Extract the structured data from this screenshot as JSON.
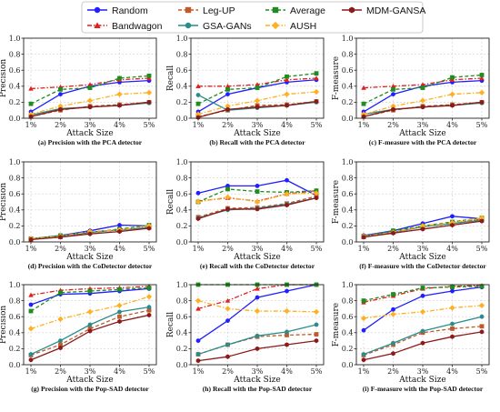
{
  "chart_data": {
    "type": "line",
    "legend": {
      "placement": "top",
      "entries": [
        "Random",
        "Bandwagon",
        "Leg-UP",
        "GSA-GANs",
        "Average",
        "AUSH",
        "MDM-GANSA"
      ]
    },
    "series_styles": [
      {
        "name": "Random",
        "color": "#1f1fff",
        "marker": "circle",
        "dash": "solid"
      },
      {
        "name": "Bandwagon",
        "color": "#e02020",
        "marker": "triangle",
        "dash": "dashdot"
      },
      {
        "name": "Leg-UP",
        "color": "#c05a2a",
        "marker": "square",
        "dash": "dashed"
      },
      {
        "name": "GSA-GANs",
        "color": "#2a8c8c",
        "marker": "circle",
        "dash": "solid"
      },
      {
        "name": "Average",
        "color": "#1e8c1e",
        "marker": "square",
        "dash": "dashed"
      },
      {
        "name": "AUSH",
        "color": "#ffb020",
        "marker": "diamond",
        "dash": "dashdot"
      },
      {
        "name": "MDM-GANSA",
        "color": "#8b1a1a",
        "marker": "hexagon",
        "dash": "solid"
      }
    ],
    "x": [
      "1%",
      "2%",
      "3%",
      "4%",
      "5%"
    ],
    "xlabel": "Attack Size",
    "ylim": [
      0.0,
      1.0
    ],
    "yticks": [
      "0.0",
      "0.2",
      "0.4",
      "0.6",
      "0.8",
      "1.0"
    ],
    "grid": true,
    "panels": [
      {
        "caption": "(a) Precision with the PCA detector",
        "ylabel": "Precision",
        "values": [
          [
            0.08,
            0.3,
            0.4,
            0.45,
            0.47
          ],
          [
            0.37,
            0.39,
            0.42,
            0.48,
            0.5
          ],
          [
            0.02,
            0.1,
            0.15,
            0.17,
            0.2
          ],
          [
            0.04,
            0.12,
            0.14,
            0.16,
            0.19
          ],
          [
            0.18,
            0.36,
            0.38,
            0.5,
            0.53
          ],
          [
            0.05,
            0.15,
            0.22,
            0.3,
            0.32
          ],
          [
            0.02,
            0.11,
            0.14,
            0.16,
            0.2
          ]
        ]
      },
      {
        "caption": "(b) Recall with the PCA detector",
        "ylabel": "Recall",
        "values": [
          [
            0.08,
            0.3,
            0.38,
            0.45,
            0.48
          ],
          [
            0.4,
            0.4,
            0.42,
            0.48,
            0.5
          ],
          [
            0.02,
            0.1,
            0.16,
            0.17,
            0.21
          ],
          [
            0.29,
            0.1,
            0.13,
            0.16,
            0.2
          ],
          [
            0.18,
            0.36,
            0.38,
            0.52,
            0.56
          ],
          [
            0.05,
            0.15,
            0.22,
            0.3,
            0.33
          ],
          [
            0.01,
            0.11,
            0.14,
            0.16,
            0.21
          ]
        ]
      },
      {
        "caption": "(c) F-measure with the PCA detector",
        "ylabel": "F-measure",
        "values": [
          [
            0.08,
            0.3,
            0.4,
            0.45,
            0.47
          ],
          [
            0.38,
            0.4,
            0.42,
            0.48,
            0.5
          ],
          [
            0.02,
            0.1,
            0.15,
            0.17,
            0.2
          ],
          [
            0.05,
            0.11,
            0.14,
            0.16,
            0.19
          ],
          [
            0.18,
            0.36,
            0.38,
            0.51,
            0.54
          ],
          [
            0.05,
            0.15,
            0.22,
            0.3,
            0.32
          ],
          [
            0.02,
            0.11,
            0.14,
            0.16,
            0.2
          ]
        ]
      },
      {
        "caption": "(d) Precision with the CoDetector detector",
        "ylabel": "Precision",
        "values": [
          [
            0.04,
            0.08,
            0.14,
            0.21,
            0.2
          ],
          [
            0.03,
            0.06,
            0.12,
            0.15,
            0.19
          ],
          [
            0.04,
            0.07,
            0.12,
            0.15,
            0.18
          ],
          [
            0.04,
            0.07,
            0.12,
            0.15,
            0.18
          ],
          [
            0.04,
            0.08,
            0.12,
            0.16,
            0.21
          ],
          [
            0.04,
            0.07,
            0.13,
            0.15,
            0.2
          ],
          [
            0.03,
            0.06,
            0.1,
            0.13,
            0.17
          ]
        ]
      },
      {
        "caption": "(e) Recall with the CoDetector detector",
        "ylabel": "Recall",
        "values": [
          [
            0.61,
            0.7,
            0.7,
            0.77,
            0.58
          ],
          [
            0.51,
            0.55,
            0.51,
            0.6,
            0.64
          ],
          [
            0.31,
            0.42,
            0.43,
            0.48,
            0.57
          ],
          [
            0.3,
            0.4,
            0.42,
            0.47,
            0.55
          ],
          [
            0.5,
            0.66,
            0.63,
            0.62,
            0.64
          ],
          [
            0.5,
            0.56,
            0.5,
            0.6,
            0.61
          ],
          [
            0.29,
            0.41,
            0.41,
            0.46,
            0.55
          ]
        ]
      },
      {
        "caption": "(f) F-measure with the CoDetector detector",
        "ylabel": "F-measure",
        "values": [
          [
            0.08,
            0.14,
            0.23,
            0.32,
            0.29
          ],
          [
            0.06,
            0.12,
            0.19,
            0.24,
            0.29
          ],
          [
            0.07,
            0.12,
            0.19,
            0.23,
            0.28
          ],
          [
            0.07,
            0.12,
            0.19,
            0.23,
            0.27
          ],
          [
            0.07,
            0.14,
            0.2,
            0.25,
            0.3
          ],
          [
            0.07,
            0.12,
            0.2,
            0.24,
            0.3
          ],
          [
            0.06,
            0.11,
            0.16,
            0.21,
            0.26
          ]
        ]
      },
      {
        "caption": "(g) Precision with the Pop-SAD detector",
        "ylabel": "Precision",
        "values": [
          [
            0.75,
            0.88,
            0.89,
            0.92,
            0.95
          ],
          [
            0.87,
            0.93,
            0.95,
            0.96,
            0.98
          ],
          [
            0.12,
            0.25,
            0.45,
            0.6,
            0.68
          ],
          [
            0.13,
            0.3,
            0.5,
            0.66,
            0.72
          ],
          [
            0.67,
            0.9,
            0.92,
            0.94,
            0.96
          ],
          [
            0.45,
            0.57,
            0.66,
            0.74,
            0.85
          ],
          [
            0.06,
            0.21,
            0.42,
            0.54,
            0.62
          ]
        ]
      },
      {
        "caption": "(h) Recall with the Pop-SAD detector",
        "ylabel": "Recall",
        "values": [
          [
            0.3,
            0.55,
            0.84,
            0.92,
            1.0
          ],
          [
            0.7,
            0.8,
            0.95,
            1.0,
            1.0
          ],
          [
            0.13,
            0.25,
            0.35,
            0.37,
            0.38
          ],
          [
            0.13,
            0.25,
            0.36,
            0.41,
            0.5
          ],
          [
            1.0,
            1.0,
            1.0,
            1.0,
            1.0
          ],
          [
            0.8,
            0.7,
            0.67,
            0.67,
            0.66
          ],
          [
            0.05,
            0.1,
            0.2,
            0.25,
            0.3
          ]
        ]
      },
      {
        "caption": "(i) F-measure with the Pop-SAD detector",
        "ylabel": "F-measure",
        "values": [
          [
            0.43,
            0.69,
            0.86,
            0.92,
            0.97
          ],
          [
            0.78,
            0.86,
            0.95,
            0.98,
            0.99
          ],
          [
            0.12,
            0.25,
            0.4,
            0.45,
            0.48
          ],
          [
            0.13,
            0.27,
            0.42,
            0.51,
            0.6
          ],
          [
            0.8,
            0.88,
            0.96,
            0.97,
            0.98
          ],
          [
            0.58,
            0.63,
            0.66,
            0.71,
            0.74
          ],
          [
            0.06,
            0.14,
            0.27,
            0.35,
            0.41
          ]
        ]
      }
    ]
  }
}
